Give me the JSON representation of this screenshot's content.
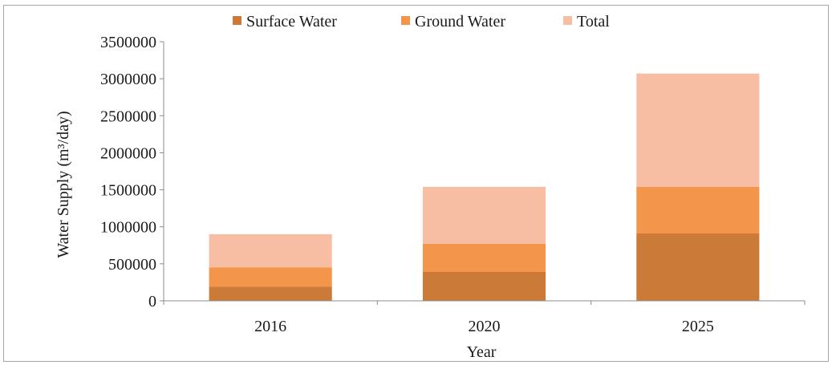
{
  "chart_data": {
    "type": "bar",
    "stacked": true,
    "categories": [
      "2016",
      "2020",
      "2025"
    ],
    "series": [
      {
        "name": "Surface Water",
        "color": "#cc7a38",
        "values": [
          190000,
          390000,
          910000
        ]
      },
      {
        "name": "Ground Water",
        "color": "#f3954a",
        "values": [
          260000,
          380000,
          630000
        ]
      },
      {
        "name": "Total",
        "color": "#f8bea4",
        "values": [
          450000,
          770000,
          1530000
        ]
      }
    ],
    "xlabel": "Year",
    "ylabel": "Water Supply (m³/day)",
    "ylim": [
      0,
      3500000
    ],
    "yticks": [
      "0",
      "500000",
      "1000000",
      "1500000",
      "2000000",
      "2500000",
      "3000000",
      "3500000"
    ],
    "grid": false,
    "legend": "top"
  }
}
